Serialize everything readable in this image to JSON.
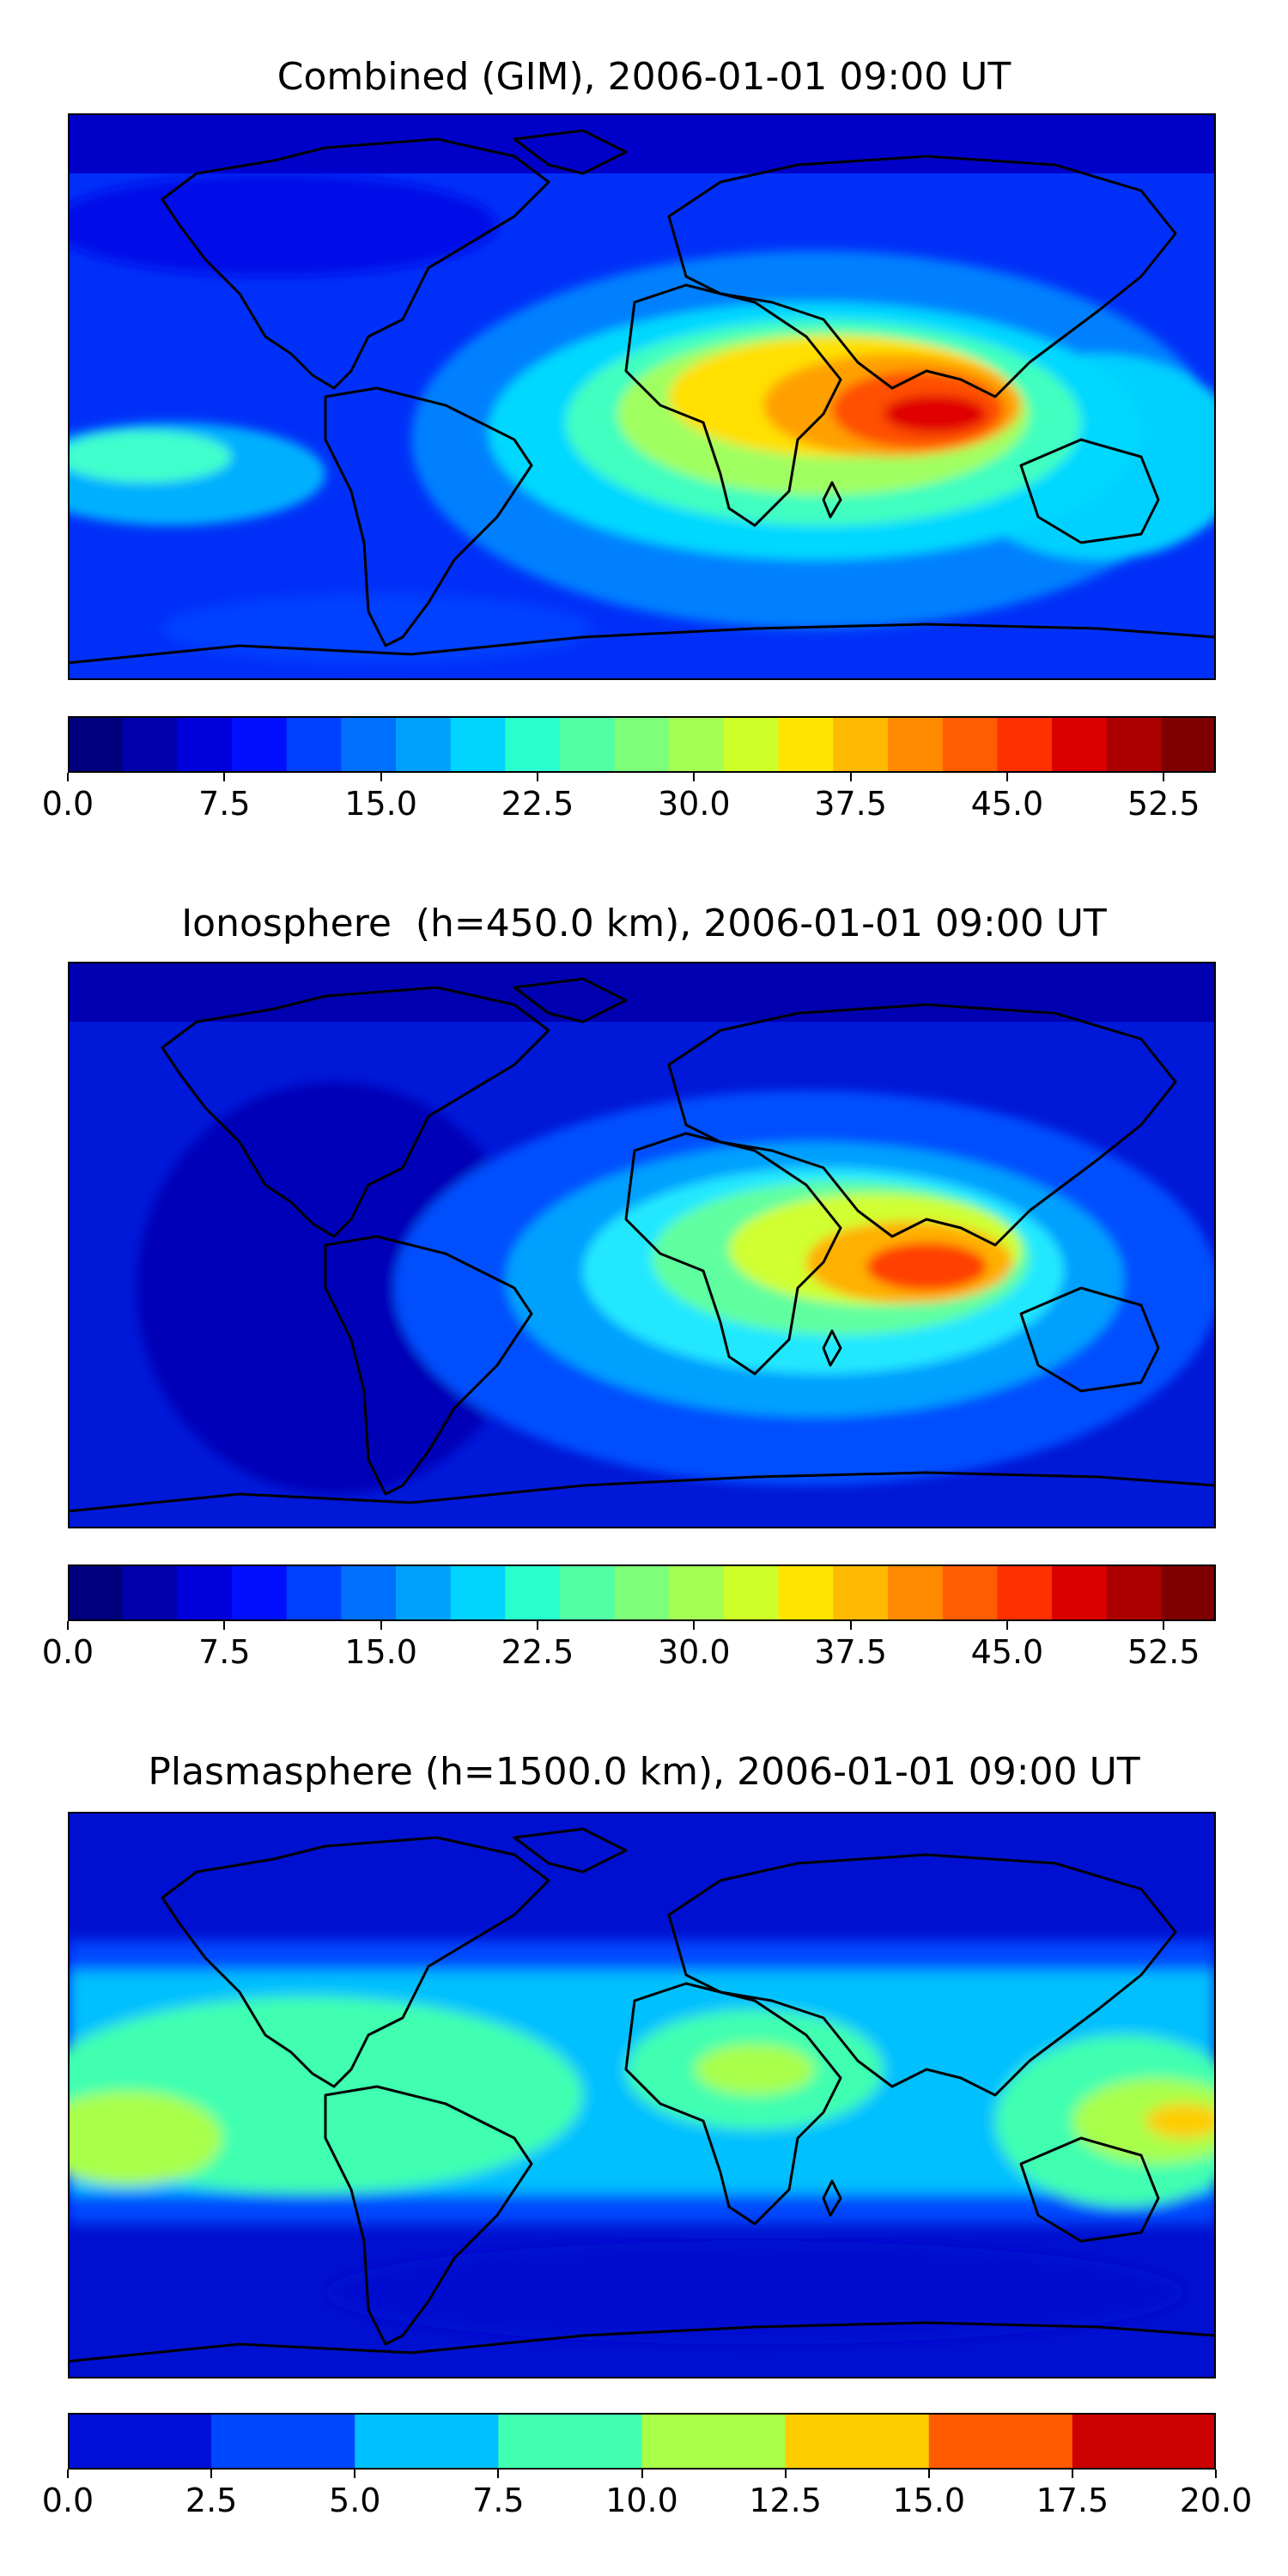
{
  "panels": [
    {
      "title": "Combined (GIM), 2006-01-01 09:00 UT",
      "colorbar": {
        "range": [
          0,
          55
        ],
        "ticks": [
          "0.0",
          "7.5",
          "15.0",
          "22.5",
          "30.0",
          "37.5",
          "45.0",
          "52.5"
        ],
        "tick_values": [
          0,
          7.5,
          15,
          22.5,
          30,
          37.5,
          45,
          52.5
        ],
        "colors": [
          "#00007f",
          "#0000ac",
          "#0000db",
          "#0010ff",
          "#0040ff",
          "#0070ff",
          "#00a0ff",
          "#00d4ff",
          "#29ffce",
          "#52ffa5",
          "#7dff7a",
          "#a5ff52",
          "#ceff29",
          "#ffe500",
          "#ffb900",
          "#ff8a00",
          "#ff5e00",
          "#ff3000",
          "#db0000",
          "#ac0000",
          "#7f0000"
        ]
      }
    },
    {
      "title": "Ionosphere  (h=450.0 km), 2006-01-01 09:00 UT",
      "colorbar": {
        "range": [
          0,
          55
        ],
        "ticks": [
          "0.0",
          "7.5",
          "15.0",
          "22.5",
          "30.0",
          "37.5",
          "45.0",
          "52.5"
        ],
        "tick_values": [
          0,
          7.5,
          15,
          22.5,
          30,
          37.5,
          45,
          52.5
        ],
        "colors": [
          "#00007f",
          "#0000ac",
          "#0000db",
          "#0010ff",
          "#0040ff",
          "#0070ff",
          "#00a0ff",
          "#00d4ff",
          "#29ffce",
          "#52ffa5",
          "#7dff7a",
          "#a5ff52",
          "#ceff29",
          "#ffe500",
          "#ffb900",
          "#ff8a00",
          "#ff5e00",
          "#ff3000",
          "#db0000",
          "#ac0000",
          "#7f0000"
        ]
      }
    },
    {
      "title": "Plasmasphere (h=1500.0 km), 2006-01-01 09:00 UT",
      "colorbar": {
        "range": [
          0,
          20
        ],
        "ticks": [
          "0.0",
          "2.5",
          "5.0",
          "7.5",
          "10.0",
          "12.5",
          "15.0",
          "17.5",
          "20.0"
        ],
        "tick_values": [
          0,
          2.5,
          5,
          7.5,
          10,
          12.5,
          15,
          17.5,
          20
        ],
        "colors": [
          "#0010d8",
          "#0048ff",
          "#00c0ff",
          "#40ffb0",
          "#a8ff48",
          "#ffcc00",
          "#ff5a00",
          "#cc0000"
        ]
      }
    }
  ]
}
